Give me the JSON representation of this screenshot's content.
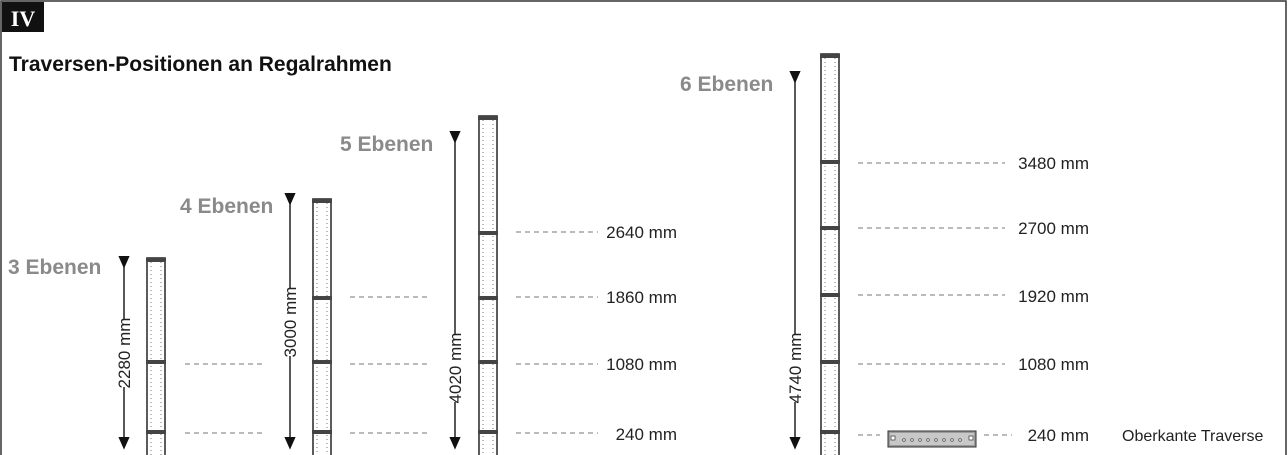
{
  "badge": "IV",
  "title": "Traversen-Positionen an Regalrahmen",
  "frames": [
    {
      "label": "3 Ebenen",
      "height": "2280 mm"
    },
    {
      "label": "4 Ebenen",
      "height": "3000 mm"
    },
    {
      "label": "5 Ebenen",
      "height": "4020 mm"
    },
    {
      "label": "6 Ebenen",
      "height": "4740 mm"
    }
  ],
  "positions_group1": [
    "2640 mm",
    "1860 mm",
    "1080 mm",
    "240 mm"
  ],
  "positions_group2": [
    "3480 mm",
    "2700 mm",
    "1920 mm",
    "1080 mm",
    "240 mm"
  ],
  "note": "Oberkante Traverse",
  "colors": {
    "frame": "#333333",
    "level_label": "#8a8a8a",
    "dash": "#777777",
    "traverse": "#9a9a9a"
  }
}
